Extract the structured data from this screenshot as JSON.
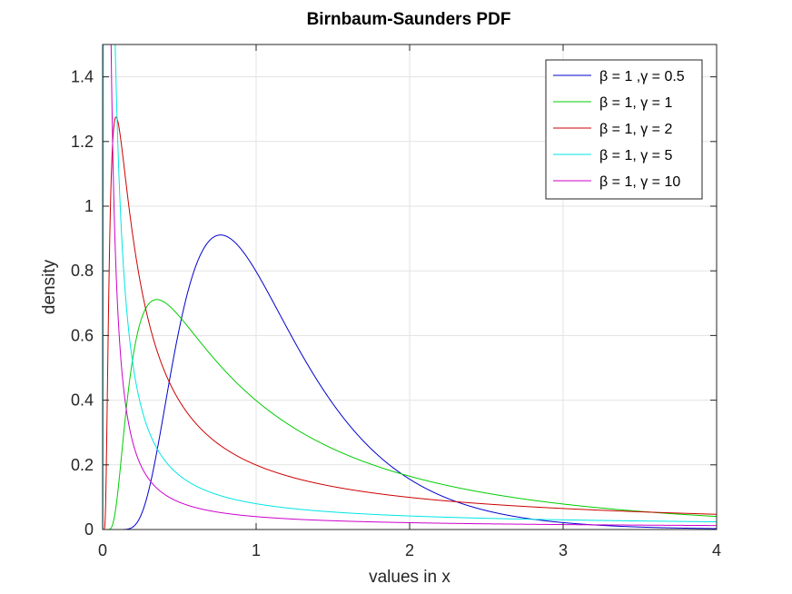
{
  "chart_data": {
    "type": "line",
    "title": "Birnbaum-Saunders PDF",
    "xlabel": "values in x",
    "ylabel": "density",
    "xlim": [
      0,
      4
    ],
    "ylim": [
      0,
      1.5
    ],
    "xticks": [
      "0",
      "1",
      "2",
      "3",
      "4"
    ],
    "yticks": [
      "0",
      "0.2",
      "0.4",
      "0.6",
      "0.8",
      "1",
      "1.2",
      "1.4"
    ],
    "grid": true,
    "legend_position": "top-right",
    "series": [
      {
        "name": "β = 1 ,γ = 0.5",
        "beta": 1,
        "gamma": 0.5,
        "color": "#0000cc"
      },
      {
        "name": "β = 1, γ = 1",
        "beta": 1,
        "gamma": 1,
        "color": "#00cc00"
      },
      {
        "name": "β = 1, γ = 2",
        "beta": 1,
        "gamma": 2,
        "color": "#cc0000"
      },
      {
        "name": "β = 1, γ = 5",
        "beta": 1,
        "gamma": 5,
        "color": "#00e5e5"
      },
      {
        "name": "β = 1, γ = 10",
        "beta": 1,
        "gamma": 10,
        "color": "#cc00cc"
      }
    ]
  }
}
